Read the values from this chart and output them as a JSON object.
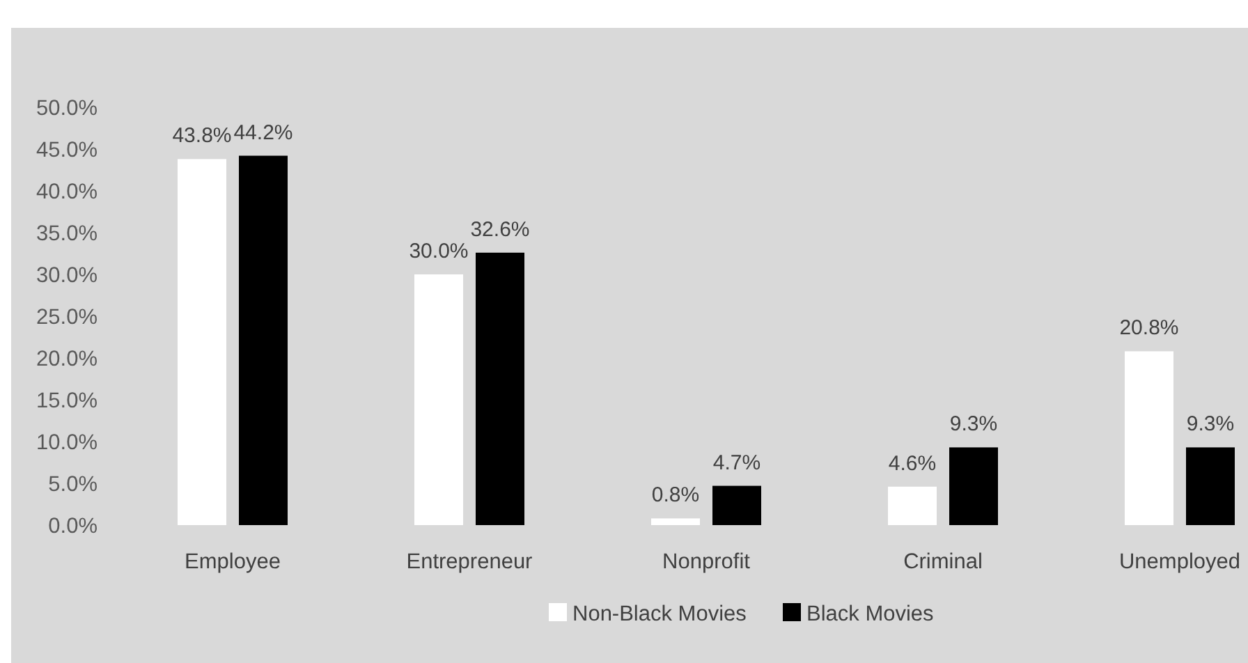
{
  "chart_data": {
    "type": "bar",
    "categories": [
      "Employee",
      "Entrepreneur",
      "Nonprofit",
      "Criminal",
      "Unemployed"
    ],
    "series": [
      {
        "name": "Non-Black Movies",
        "color": "#ffffff",
        "values": [
          43.8,
          30.0,
          0.8,
          4.6,
          20.8
        ]
      },
      {
        "name": "Black Movies",
        "color": "#000000",
        "values": [
          44.2,
          32.6,
          4.7,
          9.3,
          9.3
        ]
      }
    ],
    "ylim": [
      0,
      50
    ],
    "yticks": [
      {
        "value": 0,
        "label": "0.0%"
      },
      {
        "value": 5,
        "label": "5.0%"
      },
      {
        "value": 10,
        "label": "10.0%"
      },
      {
        "value": 15,
        "label": "15.0%"
      },
      {
        "value": 20,
        "label": "20.0%"
      },
      {
        "value": 25,
        "label": "25.0%"
      },
      {
        "value": 30,
        "label": "30.0%"
      },
      {
        "value": 35,
        "label": "35.0%"
      },
      {
        "value": 40,
        "label": "40.0%"
      },
      {
        "value": 45,
        "label": "45.0%"
      },
      {
        "value": 50,
        "label": "50.0%"
      }
    ],
    "value_labels": [
      [
        "43.8%",
        "30.0%",
        "0.8%",
        "4.6%",
        "20.8%"
      ],
      [
        "44.2%",
        "32.6%",
        "4.7%",
        "9.3%",
        "9.3%"
      ]
    ],
    "grid": false,
    "legend": "bottom"
  }
}
